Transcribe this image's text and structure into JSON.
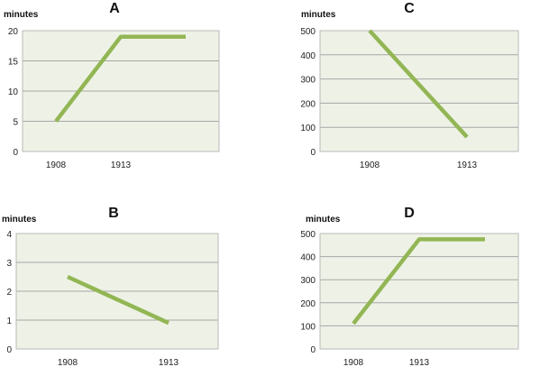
{
  "chart_data": [
    {
      "type": "line",
      "title": "A",
      "ylabel": "minutes",
      "xlabel": "",
      "categories": [
        "1908",
        "1913",
        ""
      ],
      "ylim": [
        0,
        20
      ],
      "yticks": [
        0,
        5,
        10,
        15,
        20
      ],
      "grid": true,
      "color": "#92b654",
      "series": [
        {
          "values": [
            5,
            19,
            19
          ]
        }
      ]
    },
    {
      "type": "line",
      "title": "C",
      "ylabel": "minutes",
      "xlabel": "",
      "categories": [
        "1908",
        "1913"
      ],
      "ylim": [
        0,
        500
      ],
      "yticks": [
        0,
        100,
        200,
        300,
        400,
        500
      ],
      "grid": true,
      "color": "#92b654",
      "series": [
        {
          "values": [
            500,
            60
          ]
        }
      ]
    },
    {
      "type": "line",
      "title": "B",
      "ylabel": "minutes",
      "xlabel": "",
      "categories": [
        "1908",
        "1913"
      ],
      "ylim": [
        0,
        4
      ],
      "yticks": [
        0,
        1,
        2,
        3,
        4
      ],
      "grid": true,
      "color": "#92b654",
      "series": [
        {
          "values": [
            2.5,
            0.9
          ]
        }
      ]
    },
    {
      "type": "line",
      "title": "D",
      "ylabel": "minutes",
      "xlabel": "",
      "categories": [
        "1908",
        "1913",
        ""
      ],
      "ylim": [
        0,
        500
      ],
      "yticks": [
        0,
        100,
        200,
        300,
        400,
        500
      ],
      "grid": true,
      "color": "#92b654",
      "series": [
        {
          "values": [
            110,
            475,
            475
          ]
        }
      ]
    }
  ]
}
